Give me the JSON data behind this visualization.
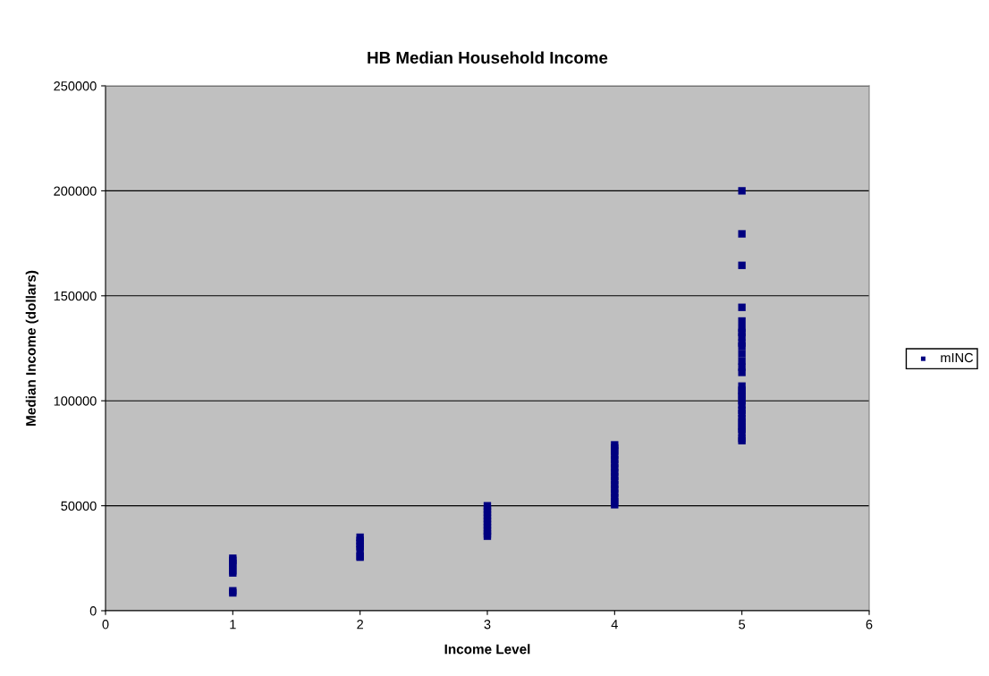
{
  "chart_data": {
    "type": "scatter",
    "title": "HB Median Household Income",
    "xlabel": "Income Level",
    "ylabel": "Median Income (dollars)",
    "xlim": [
      0,
      6
    ],
    "xticks": [
      0,
      1,
      2,
      3,
      4,
      5,
      6
    ],
    "ylim": [
      0,
      250000
    ],
    "yticks": [
      0,
      50000,
      100000,
      150000,
      200000,
      250000
    ],
    "grid": "y",
    "legend": "right",
    "marker": "square",
    "x": [
      1,
      1,
      1,
      1,
      1,
      1,
      1,
      1,
      2,
      2,
      2,
      2,
      2,
      2,
      2,
      3,
      3,
      3,
      3,
      3,
      3,
      3,
      3,
      3,
      3,
      3,
      4,
      4,
      4,
      4,
      4,
      4,
      4,
      4,
      4,
      4,
      4,
      4,
      4,
      4,
      4,
      4,
      5,
      5,
      5,
      5,
      5,
      5,
      5,
      5,
      5,
      5,
      5,
      5,
      5,
      5,
      5,
      5,
      5,
      5,
      5,
      5,
      5,
      5,
      5,
      5,
      5,
      5,
      5,
      5,
      5
    ],
    "series": [
      {
        "name": "mINC",
        "color": "#000080",
        "values": [
          25000,
          24000,
          22500,
          21500,
          19000,
          18000,
          9500,
          8500,
          35000,
          33500,
          32000,
          30500,
          29000,
          26000,
          25500,
          50000,
          48500,
          47000,
          45500,
          44000,
          42500,
          41000,
          39500,
          38000,
          36500,
          35500,
          79000,
          77500,
          76000,
          74000,
          72000,
          70000,
          68000,
          66000,
          64000,
          62000,
          60000,
          58000,
          56000,
          54000,
          52000,
          50500,
          200000,
          179500,
          164500,
          144500,
          138000,
          134500,
          132500,
          130500,
          127500,
          126000,
          122500,
          119000,
          116000,
          113500,
          107000,
          105000,
          103500,
          102000,
          100000,
          98000,
          95500,
          94000,
          91500,
          90000,
          88000,
          86500,
          85000,
          82000,
          81000
        ]
      }
    ]
  }
}
